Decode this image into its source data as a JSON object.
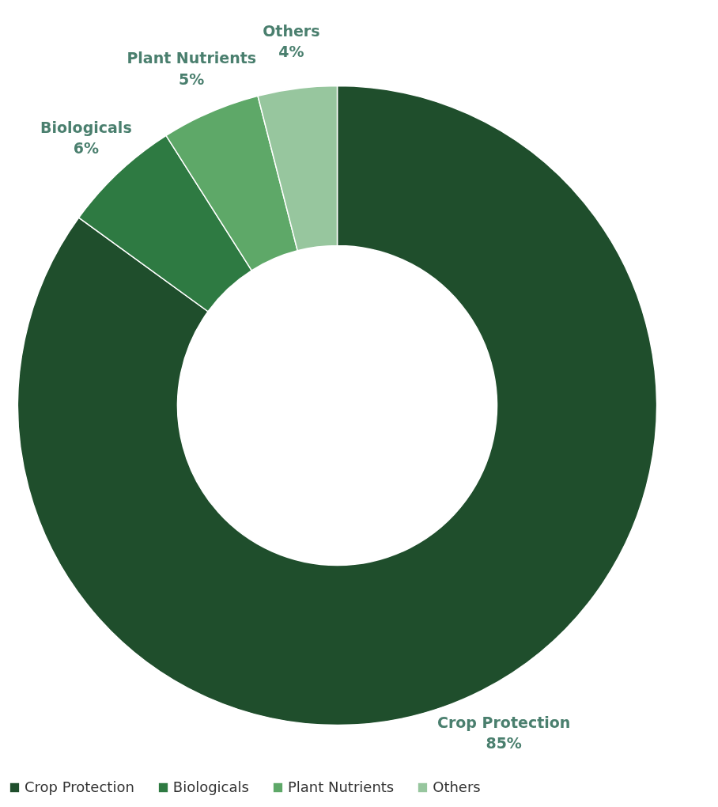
{
  "chart_data": {
    "type": "donut",
    "categories": [
      "Crop Protection",
      "Biologicals",
      "Plant Nutrients",
      "Others"
    ],
    "values": [
      85,
      6,
      5,
      4
    ],
    "value_labels": [
      "85%",
      "6%",
      "5%",
      "4%"
    ],
    "colors": [
      "#1f4e2c",
      "#2e7a42",
      "#5ea868",
      "#97c69e"
    ],
    "legend": "bottom"
  }
}
